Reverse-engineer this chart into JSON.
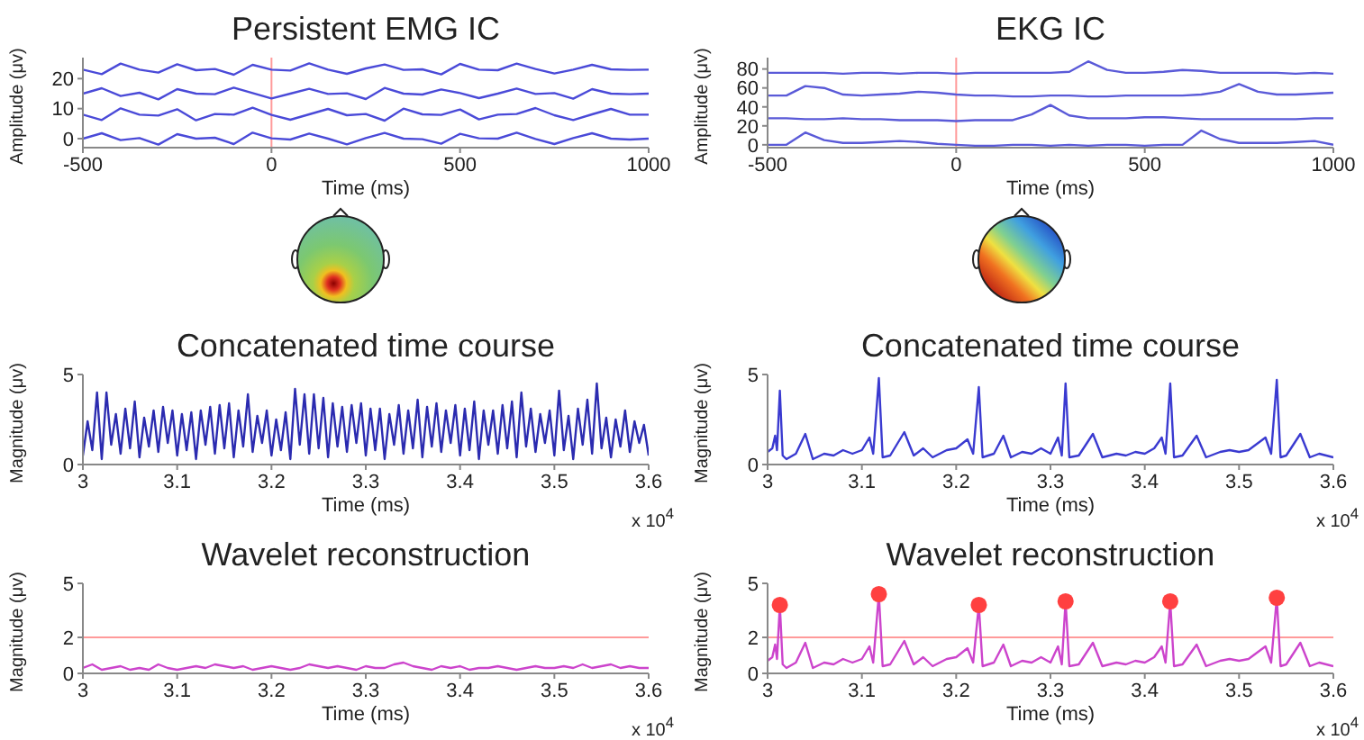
{
  "chart_data": [
    {
      "type": "line",
      "title": "Persistent EMG IC",
      "xlabel": "Time (ms)",
      "ylabel": "Amplitude (μv)",
      "xlim": [
        -500,
        1000
      ],
      "xticks": [
        -500,
        0,
        500,
        1000
      ],
      "ylim": [
        -3,
        27
      ],
      "yticks": [
        0,
        10,
        20
      ],
      "ref_lines": [
        {
          "axis": "x",
          "value": 0,
          "color": "#ff9a9a"
        }
      ],
      "x": [
        -500,
        -450,
        -400,
        -350,
        -300,
        -250,
        -200,
        -150,
        -100,
        -50,
        0,
        50,
        100,
        150,
        200,
        250,
        300,
        350,
        400,
        450,
        500,
        550,
        600,
        650,
        700,
        750,
        800,
        850,
        900,
        950,
        1000
      ],
      "series": [
        {
          "color": "#4a4ad8",
          "values": [
            23,
            21.5,
            25,
            23,
            22,
            24.8,
            22.8,
            23.2,
            21.3,
            24.6,
            23,
            22.7,
            25.1,
            23,
            21.6,
            23.4,
            24.7,
            22.9,
            23.1,
            21.4,
            24.9,
            23,
            22.8,
            25,
            23.2,
            21.7,
            23,
            24.6,
            23.1,
            22.9,
            23
          ]
        },
        {
          "color": "#4a4ad8",
          "values": [
            15,
            16.8,
            14.2,
            15.3,
            13.1,
            16.5,
            15,
            14.8,
            17,
            15.2,
            13.4,
            15,
            16.6,
            14.9,
            15.1,
            13.2,
            16.9,
            15,
            14.7,
            16.4,
            15.2,
            13.5,
            15,
            16.7,
            14.9,
            15.2,
            13.3,
            16.5,
            15,
            14.8,
            15
          ]
        },
        {
          "color": "#4a4ad8",
          "values": [
            8,
            6.2,
            10.1,
            8,
            7.7,
            9.8,
            6.1,
            8.2,
            8,
            10.3,
            7.9,
            6.3,
            8.1,
            9.9,
            7.8,
            8.2,
            6,
            10,
            8.1,
            7.9,
            9.7,
            6.4,
            8,
            8.2,
            10.2,
            7.8,
            6.2,
            8.1,
            9.9,
            8,
            8
          ]
        },
        {
          "color": "#4a4ad8",
          "values": [
            0,
            1.8,
            -0.5,
            0.2,
            -2,
            1.5,
            0,
            0.3,
            -1.8,
            2,
            0.1,
            -0.3,
            1.7,
            0,
            -1.9,
            0.2,
            1.9,
            0,
            -0.2,
            -1.7,
            1.6,
            0.1,
            0,
            2,
            -0.1,
            -1.8,
            0.2,
            1.8,
            0,
            -0.3,
            0
          ]
        }
      ]
    },
    {
      "type": "line",
      "title": "EKG IC",
      "xlabel": "Time (ms)",
      "ylabel": "Amplitude (μv)",
      "xlim": [
        -500,
        1000
      ],
      "xticks": [
        -500,
        0,
        500,
        1000
      ],
      "ylim": [
        -3,
        92
      ],
      "yticks": [
        0,
        20,
        40,
        60,
        80
      ],
      "ref_lines": [
        {
          "axis": "x",
          "value": 0,
          "color": "#ff9a9a"
        }
      ],
      "x": [
        -500,
        -450,
        -400,
        -350,
        -300,
        -250,
        -200,
        -150,
        -100,
        -50,
        0,
        50,
        100,
        150,
        200,
        250,
        300,
        350,
        400,
        450,
        500,
        550,
        600,
        650,
        700,
        750,
        800,
        850,
        900,
        950,
        1000
      ],
      "series": [
        {
          "color": "#5a5ad8",
          "values": [
            76,
            76,
            76,
            76,
            75,
            76,
            76,
            75,
            76,
            76,
            75,
            76,
            76,
            76,
            76,
            76,
            77,
            88,
            79,
            76,
            76,
            77,
            79,
            78,
            76,
            76,
            76,
            76,
            75,
            76,
            75
          ]
        },
        {
          "color": "#5a5ad8",
          "values": [
            52,
            52,
            62,
            60,
            53,
            52,
            53,
            54,
            56,
            55,
            53,
            52,
            52,
            51,
            51,
            52,
            52,
            51,
            51,
            52,
            52,
            52,
            52,
            53,
            56,
            64,
            56,
            53,
            53,
            54,
            55
          ]
        },
        {
          "color": "#5a5ad8",
          "values": [
            28,
            28,
            27,
            27,
            28,
            27,
            27,
            26,
            26,
            26,
            25,
            26,
            26,
            26,
            32,
            42,
            31,
            28,
            28,
            28,
            29,
            29,
            28,
            27,
            27,
            27,
            27,
            27,
            27,
            28,
            28
          ]
        },
        {
          "color": "#5a5ad8",
          "values": [
            0,
            0,
            13,
            5,
            2,
            2,
            3,
            4,
            3,
            1,
            0,
            -1,
            -1,
            0,
            0,
            -1,
            0,
            -1,
            0,
            0,
            -1,
            0,
            0,
            15,
            6,
            2,
            2,
            2,
            3,
            4,
            0
          ]
        }
      ]
    },
    {
      "type": "line",
      "title": "Concatenated time course",
      "xlabel": "Time (ms)",
      "ylabel": "Magnitude (μv)",
      "xlim": [
        3,
        3.6
      ],
      "xticks": [
        3,
        3.1,
        3.2,
        3.3,
        3.4,
        3.5,
        3.6
      ],
      "ylim": [
        0,
        5
      ],
      "yticks": [
        0,
        5
      ],
      "annotations": [
        "x 10$^{4}$"
      ],
      "x": [
        3,
        3.005,
        3.01,
        3.015,
        3.02,
        3.025,
        3.03,
        3.035,
        3.04,
        3.045,
        3.05,
        3.055,
        3.06,
        3.065,
        3.07,
        3.075,
        3.08,
        3.085,
        3.09,
        3.095,
        3.1,
        3.105,
        3.11,
        3.115,
        3.12,
        3.125,
        3.13,
        3.135,
        3.14,
        3.145,
        3.15,
        3.155,
        3.16,
        3.165,
        3.17,
        3.175,
        3.18,
        3.185,
        3.19,
        3.195,
        3.2,
        3.205,
        3.21,
        3.215,
        3.22,
        3.225,
        3.23,
        3.235,
        3.24,
        3.245,
        3.25,
        3.255,
        3.26,
        3.265,
        3.27,
        3.275,
        3.28,
        3.285,
        3.29,
        3.295,
        3.3,
        3.305,
        3.31,
        3.315,
        3.32,
        3.325,
        3.33,
        3.335,
        3.34,
        3.345,
        3.35,
        3.355,
        3.36,
        3.365,
        3.37,
        3.375,
        3.38,
        3.385,
        3.39,
        3.395,
        3.4,
        3.405,
        3.41,
        3.415,
        3.42,
        3.425,
        3.43,
        3.435,
        3.44,
        3.445,
        3.45,
        3.455,
        3.46,
        3.465,
        3.47,
        3.475,
        3.48,
        3.485,
        3.49,
        3.495,
        3.5,
        3.505,
        3.51,
        3.515,
        3.52,
        3.525,
        3.53,
        3.535,
        3.54,
        3.545,
        3.55,
        3.555,
        3.56,
        3.565,
        3.57,
        3.575,
        3.58,
        3.585,
        3.59,
        3.595,
        3.6
      ],
      "series": [
        {
          "color": "#2b2bb0",
          "values": [
            0.5,
            2.4,
            0.8,
            4.0,
            0.3,
            4.0,
            1.1,
            2.8,
            0.6,
            3.1,
            0.9,
            3.5,
            0.4,
            2.6,
            1.0,
            3.0,
            0.7,
            3.2,
            1.2,
            3.0,
            0.5,
            2.8,
            0.8,
            2.9,
            0.3,
            3.0,
            1.1,
            3.2,
            0.6,
            3.3,
            0.9,
            3.4,
            0.4,
            3.0,
            1.0,
            3.9,
            0.7,
            2.7,
            1.2,
            3.0,
            0.5,
            2.5,
            0.8,
            2.9,
            0.3,
            4.2,
            1.1,
            3.9,
            0.6,
            3.9,
            0.9,
            3.7,
            0.4,
            3.4,
            1.0,
            3.2,
            0.7,
            3.3,
            1.2,
            3.4,
            0.5,
            3.1,
            0.8,
            3.1,
            0.3,
            2.8,
            1.1,
            3.3,
            0.6,
            3.0,
            0.9,
            3.6,
            0.4,
            3.2,
            1.0,
            3.4,
            0.7,
            3.0,
            1.2,
            3.3,
            0.5,
            3.1,
            0.8,
            3.5,
            0.3,
            3.0,
            1.1,
            3.0,
            0.6,
            3.3,
            0.9,
            3.5,
            0.4,
            4.0,
            1.0,
            3.1,
            0.7,
            2.8,
            1.2,
            3.0,
            0.5,
            4.1,
            0.8,
            2.7,
            0.3,
            3.1,
            1.1,
            3.6,
            0.6,
            4.5,
            0.9,
            2.6,
            0.4,
            2.5,
            1.0,
            3.0,
            0.7,
            2.4,
            1.2,
            2.2,
            0.5
          ]
        }
      ]
    },
    {
      "type": "line",
      "title": "Concatenated time course",
      "xlabel": "Time (ms)",
      "ylabel": "Magnitude (μv)",
      "xlim": [
        3,
        3.6
      ],
      "xticks": [
        3,
        3.1,
        3.2,
        3.3,
        3.4,
        3.5,
        3.6
      ],
      "ylim": [
        0,
        5
      ],
      "yticks": [
        0,
        5
      ],
      "annotations": [
        "x 10$^{4}$"
      ],
      "x": [
        3,
        3.005,
        3.008,
        3.01,
        3.013,
        3.016,
        3.02,
        3.03,
        3.04,
        3.048,
        3.06,
        3.07,
        3.08,
        3.09,
        3.1,
        3.108,
        3.112,
        3.118,
        3.122,
        3.13,
        3.145,
        3.155,
        3.165,
        3.175,
        3.19,
        3.2,
        3.212,
        3.218,
        3.224,
        3.228,
        3.24,
        3.25,
        3.258,
        3.27,
        3.28,
        3.29,
        3.3,
        3.308,
        3.312,
        3.316,
        3.32,
        3.33,
        3.345,
        3.355,
        3.37,
        3.38,
        3.39,
        3.4,
        3.41,
        3.418,
        3.422,
        3.427,
        3.431,
        3.44,
        3.455,
        3.465,
        3.48,
        3.49,
        3.5,
        3.51,
        3.528,
        3.534,
        3.54,
        3.544,
        3.55,
        3.565,
        3.575,
        3.585,
        3.6
      ],
      "series": [
        {
          "color": "#3a3ad0",
          "values": [
            0.7,
            0.9,
            1.6,
            0.8,
            4.1,
            0.5,
            0.3,
            0.6,
            1.7,
            0.3,
            0.6,
            0.5,
            0.8,
            0.6,
            0.8,
            1.5,
            0.6,
            4.8,
            0.4,
            0.5,
            1.8,
            0.5,
            0.9,
            0.4,
            0.8,
            0.9,
            1.4,
            0.6,
            4.3,
            0.4,
            0.6,
            1.6,
            0.4,
            0.7,
            0.6,
            0.9,
            0.6,
            1.5,
            0.5,
            4.5,
            0.4,
            0.5,
            1.7,
            0.4,
            0.6,
            0.5,
            0.7,
            0.6,
            0.9,
            1.5,
            0.6,
            4.5,
            0.4,
            0.5,
            1.6,
            0.4,
            0.7,
            0.8,
            0.7,
            0.8,
            1.5,
            0.6,
            4.7,
            0.4,
            0.5,
            1.7,
            0.4,
            0.6,
            0.4
          ]
        }
      ]
    },
    {
      "type": "line",
      "title": "Wavelet reconstruction",
      "xlabel": "Time (ms)",
      "ylabel": "Magnitude (μv)",
      "xlim": [
        3,
        3.6
      ],
      "xticks": [
        3,
        3.1,
        3.2,
        3.3,
        3.4,
        3.5,
        3.6
      ],
      "ylim": [
        0,
        5
      ],
      "yticks": [
        0,
        2,
        5
      ],
      "annotations": [
        "x 10$^{4}$"
      ],
      "ref_lines": [
        {
          "axis": "y",
          "value": 2,
          "color": "#ff9a9a"
        }
      ],
      "x": [
        3,
        3.01,
        3.02,
        3.03,
        3.04,
        3.05,
        3.06,
        3.07,
        3.08,
        3.09,
        3.1,
        3.11,
        3.12,
        3.13,
        3.14,
        3.15,
        3.16,
        3.17,
        3.18,
        3.19,
        3.2,
        3.21,
        3.22,
        3.23,
        3.24,
        3.25,
        3.26,
        3.27,
        3.28,
        3.29,
        3.3,
        3.31,
        3.32,
        3.33,
        3.34,
        3.35,
        3.36,
        3.37,
        3.38,
        3.39,
        3.4,
        3.41,
        3.42,
        3.43,
        3.44,
        3.45,
        3.46,
        3.47,
        3.48,
        3.49,
        3.5,
        3.51,
        3.52,
        3.53,
        3.54,
        3.55,
        3.56,
        3.57,
        3.58,
        3.59,
        3.6
      ],
      "series": [
        {
          "color": "#cc44cc",
          "values": [
            0.3,
            0.5,
            0.2,
            0.3,
            0.4,
            0.2,
            0.3,
            0.2,
            0.5,
            0.3,
            0.2,
            0.3,
            0.4,
            0.3,
            0.5,
            0.4,
            0.3,
            0.4,
            0.2,
            0.3,
            0.4,
            0.3,
            0.2,
            0.3,
            0.5,
            0.4,
            0.3,
            0.4,
            0.3,
            0.2,
            0.4,
            0.3,
            0.3,
            0.5,
            0.6,
            0.4,
            0.3,
            0.2,
            0.4,
            0.3,
            0.4,
            0.2,
            0.3,
            0.3,
            0.4,
            0.3,
            0.2,
            0.3,
            0.4,
            0.3,
            0.3,
            0.4,
            0.3,
            0.5,
            0.3,
            0.4,
            0.5,
            0.3,
            0.4,
            0.3,
            0.3
          ]
        }
      ]
    },
    {
      "type": "line",
      "title": "Wavelet reconstruction",
      "xlabel": "Time (ms)",
      "ylabel": "Magnitude (μv)",
      "xlim": [
        3,
        3.6
      ],
      "xticks": [
        3,
        3.1,
        3.2,
        3.3,
        3.4,
        3.5,
        3.6
      ],
      "ylim": [
        0,
        5
      ],
      "yticks": [
        0,
        2,
        5
      ],
      "annotations": [
        "x 10$^{4}$"
      ],
      "ref_lines": [
        {
          "axis": "y",
          "value": 2,
          "color": "#ff9a9a"
        }
      ],
      "x": [
        3,
        3.005,
        3.008,
        3.01,
        3.013,
        3.016,
        3.02,
        3.03,
        3.04,
        3.048,
        3.06,
        3.07,
        3.08,
        3.09,
        3.1,
        3.108,
        3.112,
        3.118,
        3.122,
        3.13,
        3.145,
        3.155,
        3.165,
        3.175,
        3.19,
        3.2,
        3.212,
        3.218,
        3.224,
        3.228,
        3.24,
        3.25,
        3.258,
        3.27,
        3.28,
        3.29,
        3.3,
        3.308,
        3.312,
        3.316,
        3.32,
        3.33,
        3.345,
        3.355,
        3.37,
        3.38,
        3.39,
        3.4,
        3.41,
        3.418,
        3.422,
        3.427,
        3.431,
        3.44,
        3.455,
        3.465,
        3.48,
        3.49,
        3.5,
        3.51,
        3.528,
        3.534,
        3.54,
        3.544,
        3.55,
        3.565,
        3.575,
        3.585,
        3.6
      ],
      "series": [
        {
          "color": "#cc44cc",
          "values": [
            0.7,
            0.9,
            1.6,
            0.8,
            3.8,
            0.5,
            0.3,
            0.6,
            1.7,
            0.3,
            0.6,
            0.5,
            0.8,
            0.6,
            0.8,
            1.5,
            0.6,
            4.4,
            0.4,
            0.5,
            1.8,
            0.5,
            0.9,
            0.4,
            0.8,
            0.9,
            1.4,
            0.6,
            3.8,
            0.4,
            0.6,
            1.6,
            0.4,
            0.7,
            0.6,
            0.9,
            0.6,
            1.5,
            0.5,
            4.0,
            0.4,
            0.5,
            1.7,
            0.4,
            0.6,
            0.5,
            0.7,
            0.6,
            0.9,
            1.5,
            0.6,
            4.0,
            0.4,
            0.5,
            1.6,
            0.4,
            0.7,
            0.8,
            0.7,
            0.8,
            1.5,
            0.6,
            4.2,
            0.4,
            0.5,
            1.7,
            0.4,
            0.6,
            0.4
          ]
        },
        {
          "type": "scatter",
          "color": "#ff4040",
          "marker": "circle",
          "x": [
            3.013,
            3.118,
            3.224,
            3.316,
            3.427,
            3.54
          ],
          "values": [
            3.8,
            4.4,
            3.8,
            4.0,
            4.0,
            4.2
          ]
        }
      ]
    }
  ]
}
